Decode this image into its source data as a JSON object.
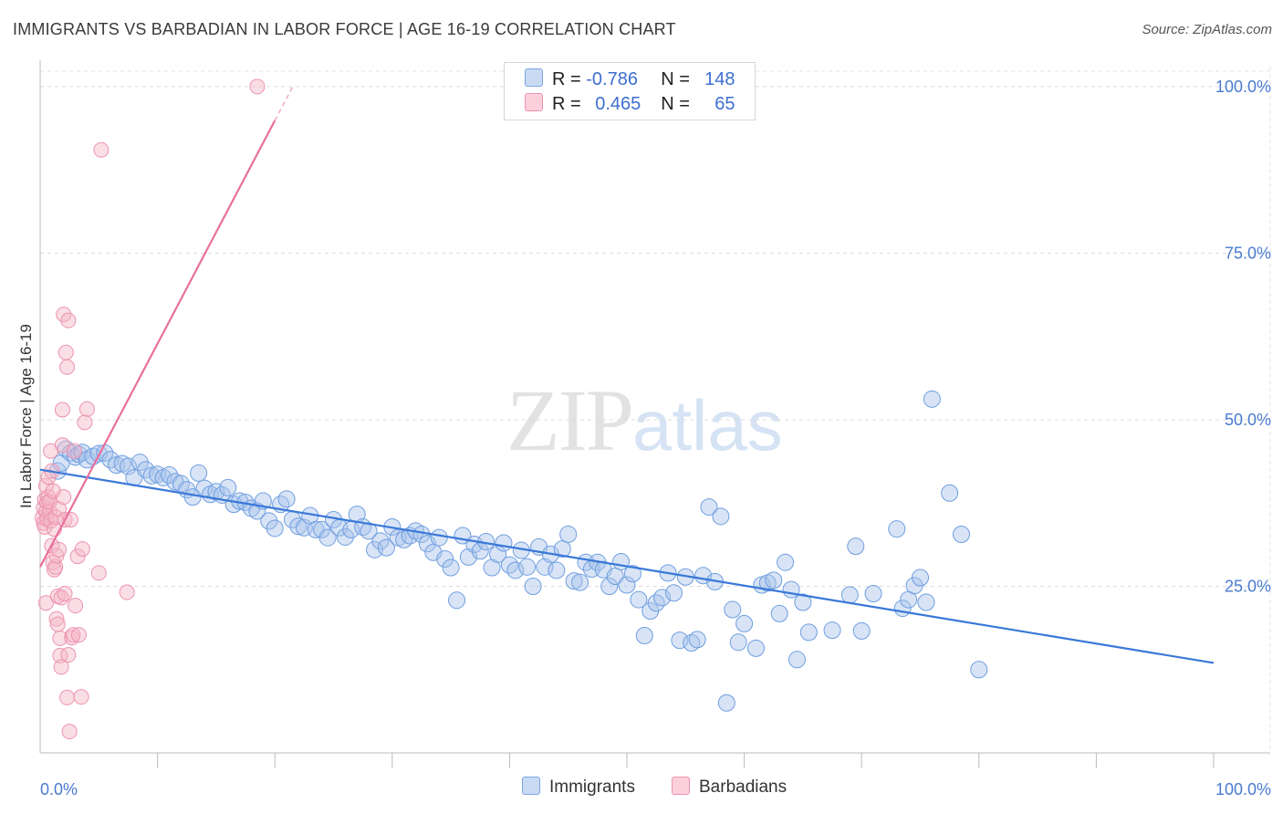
{
  "title": "IMMIGRANTS VS BARBADIAN IN LABOR FORCE | AGE 16-19 CORRELATION CHART",
  "source": "Source: ZipAtlas.com",
  "watermark": {
    "zip": "ZIP",
    "atlas": "atlas"
  },
  "legend": {
    "rows": [
      {
        "r_label": "R = ",
        "r_value": "-0.786",
        "n_label": "N = ",
        "n_value": "148",
        "color": "#a9c4ec"
      },
      {
        "r_label": "R = ",
        "r_value": "0.465",
        "n_label": "N = ",
        "n_value": "65",
        "color": "#f5b6c8"
      }
    ]
  },
  "bottom_legend": [
    {
      "label": "Immigrants",
      "color": "#a9c4ec"
    },
    {
      "label": "Barbadians",
      "color": "#f5b6c8"
    }
  ],
  "colors": {
    "blue": "#3a78d8",
    "blue_fill": "#a9c4ec",
    "pink": "#e8709a",
    "pink_fill": "#f5b6c8",
    "axis_text": "#4a7bd0"
  },
  "chart_data": {
    "type": "scatter",
    "title": "IMMIGRANTS VS BARBADIAN IN LABOR FORCE | AGE 16-19 CORRELATION CHART",
    "xlabel": "",
    "ylabel": "In Labor Force | Age 16-19",
    "xlim": [
      0,
      100
    ],
    "ylim": [
      0,
      103
    ],
    "x_tick_labels": [
      "0.0%",
      "100.0%"
    ],
    "y_ticks": [
      25,
      50,
      75,
      100
    ],
    "y_tick_labels": [
      "25.0%",
      "50.0%",
      "75.0%",
      "100.0%"
    ],
    "grid": true,
    "series": [
      {
        "name": "Immigrants",
        "r": -0.786,
        "n": 148,
        "trend": {
          "x": [
            0,
            100
          ],
          "y": [
            42.5,
            13.5
          ]
        },
        "points": [
          [
            1.5,
            42.3
          ],
          [
            1.8,
            43.5
          ],
          [
            2.2,
            45.6
          ],
          [
            2.6,
            45.0
          ],
          [
            3.0,
            44.4
          ],
          [
            3.3,
            44.8
          ],
          [
            3.6,
            45.1
          ],
          [
            4.0,
            44.0
          ],
          [
            4.5,
            44.5
          ],
          [
            5.0,
            44.9
          ],
          [
            5.5,
            45.0
          ],
          [
            6.0,
            44.0
          ],
          [
            6.5,
            43.2
          ],
          [
            7.0,
            43.4
          ],
          [
            7.5,
            43.0
          ],
          [
            8.0,
            41.3
          ],
          [
            8.5,
            43.6
          ],
          [
            9.0,
            42.5
          ],
          [
            9.5,
            41.6
          ],
          [
            10.0,
            41.8
          ],
          [
            10.5,
            41.3
          ],
          [
            11.0,
            41.7
          ],
          [
            11.5,
            40.7
          ],
          [
            12.0,
            40.4
          ],
          [
            12.5,
            39.5
          ],
          [
            13.0,
            38.4
          ],
          [
            13.5,
            42.0
          ],
          [
            14.0,
            39.7
          ],
          [
            14.5,
            38.8
          ],
          [
            15.0,
            39.2
          ],
          [
            15.5,
            38.7
          ],
          [
            16.0,
            39.8
          ],
          [
            16.5,
            37.3
          ],
          [
            17.0,
            37.8
          ],
          [
            17.5,
            37.6
          ],
          [
            18.0,
            36.7
          ],
          [
            18.5,
            36.3
          ],
          [
            19.0,
            37.8
          ],
          [
            19.5,
            34.8
          ],
          [
            20.0,
            33.7
          ],
          [
            20.5,
            37.3
          ],
          [
            21.0,
            38.1
          ],
          [
            21.5,
            35.0
          ],
          [
            22.0,
            34.0
          ],
          [
            22.5,
            33.8
          ],
          [
            23.0,
            35.6
          ],
          [
            23.5,
            33.5
          ],
          [
            24.0,
            33.5
          ],
          [
            24.5,
            32.3
          ],
          [
            25.0,
            35.0
          ],
          [
            25.5,
            33.8
          ],
          [
            26.0,
            32.4
          ],
          [
            26.5,
            33.5
          ],
          [
            27.0,
            35.8
          ],
          [
            27.5,
            33.9
          ],
          [
            28.0,
            33.3
          ],
          [
            28.5,
            30.5
          ],
          [
            29.0,
            31.8
          ],
          [
            29.5,
            30.8
          ],
          [
            30.0,
            33.9
          ],
          [
            30.5,
            32.3
          ],
          [
            31.0,
            32.0
          ],
          [
            31.5,
            32.6
          ],
          [
            32.0,
            33.3
          ],
          [
            32.5,
            32.8
          ],
          [
            33.0,
            31.4
          ],
          [
            33.5,
            30.1
          ],
          [
            34.0,
            32.3
          ],
          [
            34.5,
            29.1
          ],
          [
            35.0,
            27.8
          ],
          [
            35.5,
            22.9
          ],
          [
            36.0,
            32.6
          ],
          [
            36.5,
            29.4
          ],
          [
            37.0,
            31.3
          ],
          [
            37.5,
            30.3
          ],
          [
            38.0,
            31.7
          ],
          [
            38.5,
            27.8
          ],
          [
            39.0,
            29.8
          ],
          [
            39.5,
            31.5
          ],
          [
            40.0,
            28.2
          ],
          [
            40.5,
            27.4
          ],
          [
            41.0,
            30.4
          ],
          [
            41.5,
            27.9
          ],
          [
            42.0,
            25.0
          ],
          [
            42.5,
            30.9
          ],
          [
            43.0,
            27.9
          ],
          [
            43.5,
            29.8
          ],
          [
            44.0,
            27.4
          ],
          [
            44.5,
            30.6
          ],
          [
            45.0,
            32.8
          ],
          [
            45.5,
            25.8
          ],
          [
            46.0,
            25.6
          ],
          [
            46.5,
            28.6
          ],
          [
            47.0,
            27.6
          ],
          [
            47.5,
            28.6
          ],
          [
            48.0,
            27.5
          ],
          [
            48.5,
            25.0
          ],
          [
            49.0,
            26.5
          ],
          [
            49.5,
            28.7
          ],
          [
            50.0,
            25.2
          ],
          [
            50.5,
            26.9
          ],
          [
            51.0,
            23.0
          ],
          [
            51.5,
            17.6
          ],
          [
            52.0,
            21.3
          ],
          [
            52.5,
            22.5
          ],
          [
            53.0,
            23.3
          ],
          [
            53.5,
            27.0
          ],
          [
            54.0,
            24.0
          ],
          [
            54.5,
            16.9
          ],
          [
            55.0,
            26.4
          ],
          [
            55.5,
            16.5
          ],
          [
            56.0,
            17.0
          ],
          [
            56.5,
            26.6
          ],
          [
            57.0,
            36.9
          ],
          [
            57.5,
            25.7
          ],
          [
            58.0,
            35.5
          ],
          [
            58.5,
            7.5
          ],
          [
            59.0,
            21.5
          ],
          [
            59.5,
            16.6
          ],
          [
            60.0,
            19.4
          ],
          [
            61.0,
            15.7
          ],
          [
            61.5,
            25.2
          ],
          [
            62.0,
            25.5
          ],
          [
            62.5,
            25.9
          ],
          [
            63.0,
            20.9
          ],
          [
            63.5,
            28.6
          ],
          [
            64.0,
            24.5
          ],
          [
            64.5,
            14.0
          ],
          [
            65.0,
            22.6
          ],
          [
            65.5,
            18.1
          ],
          [
            67.5,
            18.4
          ],
          [
            69.0,
            23.7
          ],
          [
            69.5,
            31.0
          ],
          [
            70.0,
            18.3
          ],
          [
            71.0,
            23.9
          ],
          [
            73.0,
            33.6
          ],
          [
            73.5,
            21.7
          ],
          [
            74.0,
            23.0
          ],
          [
            74.5,
            25.1
          ],
          [
            75.0,
            26.3
          ],
          [
            75.5,
            22.6
          ],
          [
            76.0,
            53.1
          ],
          [
            77.5,
            39.0
          ],
          [
            78.5,
            32.8
          ],
          [
            80.0,
            12.5
          ]
        ]
      },
      {
        "name": "Barbadians",
        "r": 0.465,
        "n": 65,
        "trend": {
          "x": [
            0,
            20
          ],
          "y": [
            27.9,
            94.9
          ]
        },
        "points": [
          [
            0.2,
            35.3
          ],
          [
            0.3,
            36.8
          ],
          [
            0.3,
            34.5
          ],
          [
            0.4,
            38.0
          ],
          [
            0.4,
            33.9
          ],
          [
            0.5,
            36.2
          ],
          [
            0.5,
            40.1
          ],
          [
            0.5,
            22.5
          ],
          [
            0.6,
            37.6
          ],
          [
            0.6,
            35.1
          ],
          [
            0.7,
            38.4
          ],
          [
            0.7,
            41.4
          ],
          [
            0.8,
            36.2
          ],
          [
            0.8,
            37.7
          ],
          [
            0.9,
            34.8
          ],
          [
            0.9,
            45.3
          ],
          [
            1.0,
            42.3
          ],
          [
            1.0,
            31.1
          ],
          [
            1.1,
            39.3
          ],
          [
            1.1,
            28.6
          ],
          [
            1.2,
            33.6
          ],
          [
            1.2,
            27.5
          ],
          [
            1.3,
            35.4
          ],
          [
            1.3,
            27.9
          ],
          [
            1.4,
            29.6
          ],
          [
            1.4,
            20.1
          ],
          [
            1.5,
            19.3
          ],
          [
            1.5,
            23.5
          ],
          [
            1.6,
            36.6
          ],
          [
            1.6,
            30.5
          ],
          [
            1.7,
            17.2
          ],
          [
            1.7,
            14.6
          ],
          [
            1.8,
            12.9
          ],
          [
            1.8,
            23.3
          ],
          [
            1.9,
            51.5
          ],
          [
            1.9,
            46.2
          ],
          [
            2.0,
            65.8
          ],
          [
            2.0,
            38.4
          ],
          [
            2.1,
            23.9
          ],
          [
            2.1,
            35.0
          ],
          [
            2.2,
            60.1
          ],
          [
            2.3,
            57.9
          ],
          [
            2.3,
            8.3
          ],
          [
            2.4,
            64.9
          ],
          [
            2.4,
            14.7
          ],
          [
            2.5,
            3.2
          ],
          [
            2.6,
            35.0
          ],
          [
            2.7,
            17.3
          ],
          [
            2.8,
            17.7
          ],
          [
            2.9,
            45.3
          ],
          [
            3.0,
            22.1
          ],
          [
            3.2,
            29.5
          ],
          [
            3.3,
            17.7
          ],
          [
            3.5,
            8.4
          ],
          [
            3.6,
            30.6
          ],
          [
            3.8,
            49.6
          ],
          [
            4.0,
            51.6
          ],
          [
            5.0,
            27.0
          ],
          [
            5.2,
            90.5
          ],
          [
            7.4,
            24.1
          ],
          [
            18.5,
            100.0
          ]
        ]
      }
    ]
  }
}
